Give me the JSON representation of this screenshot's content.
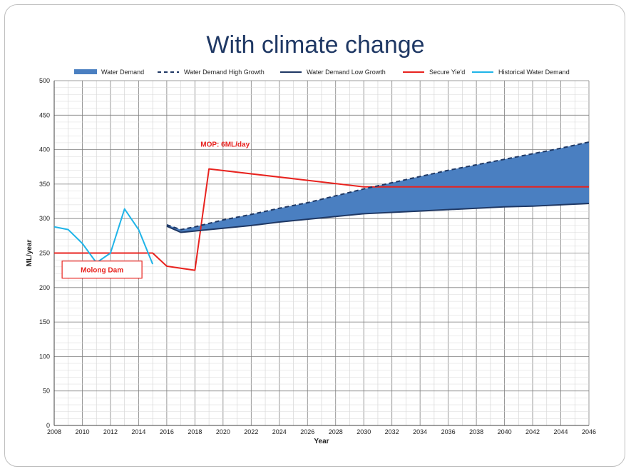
{
  "slide": {
    "title": "With climate change"
  },
  "chart_data": {
    "type": "line",
    "title": "With climate change",
    "xlabel": "Year",
    "ylabel": "ML/year",
    "xlim": [
      2008,
      2046
    ],
    "ylim": [
      0,
      500
    ],
    "x_ticks": [
      2008,
      2010,
      2012,
      2014,
      2016,
      2018,
      2020,
      2022,
      2024,
      2026,
      2028,
      2030,
      2032,
      2034,
      2036,
      2038,
      2040,
      2042,
      2044,
      2046
    ],
    "y_ticks": [
      0,
      50,
      100,
      150,
      200,
      250,
      300,
      350,
      400,
      450,
      500
    ],
    "grid": true,
    "legend_position": "top",
    "series": [
      {
        "name": "Water Demand",
        "kind": "area",
        "color": "#4a7fc1",
        "x": [
          2016,
          2017,
          2018,
          2019,
          2020,
          2022,
          2024,
          2026,
          2028,
          2030,
          2032,
          2034,
          2036,
          2038,
          2040,
          2042,
          2044,
          2046
        ],
        "lower": [
          289,
          280,
          282,
          284,
          286,
          290,
          295,
          299,
          303,
          307,
          309,
          311,
          313,
          315,
          317,
          318,
          320,
          322
        ],
        "upper": [
          291,
          284,
          288,
          293,
          298,
          306,
          315,
          323,
          333,
          343,
          352,
          361,
          370,
          378,
          386,
          394,
          402,
          411
        ]
      },
      {
        "name": "Water Demand High Growth",
        "kind": "dashed",
        "color": "#1f3864",
        "x": [
          2016,
          2017,
          2018,
          2019,
          2020,
          2022,
          2024,
          2026,
          2028,
          2030,
          2032,
          2034,
          2036,
          2038,
          2040,
          2042,
          2044,
          2046
        ],
        "y": [
          291,
          284,
          288,
          293,
          298,
          306,
          315,
          323,
          333,
          343,
          352,
          361,
          370,
          378,
          386,
          394,
          402,
          411
        ]
      },
      {
        "name": "Water Demand Low Growth",
        "kind": "line",
        "color": "#1f3864",
        "x": [
          2016,
          2017,
          2018,
          2019,
          2020,
          2022,
          2024,
          2026,
          2028,
          2030,
          2032,
          2034,
          2036,
          2038,
          2040,
          2042,
          2044,
          2046
        ],
        "y": [
          289,
          280,
          282,
          284,
          286,
          290,
          295,
          299,
          303,
          307,
          309,
          311,
          313,
          315,
          317,
          318,
          320,
          322
        ]
      },
      {
        "name": "Secure Yie'd",
        "kind": "line",
        "color": "#e8231f",
        "x": [
          2008,
          2015,
          2016,
          2017,
          2018,
          2019,
          2030,
          2046
        ],
        "y": [
          250,
          250,
          231,
          228,
          225,
          372,
          346,
          346
        ]
      },
      {
        "name": "Historical Water Demand",
        "kind": "line",
        "color": "#1fb4e8",
        "x": [
          2008,
          2009,
          2010,
          2011,
          2012,
          2013,
          2014,
          2015
        ],
        "y": [
          288,
          284,
          264,
          236,
          250,
          314,
          284,
          234
        ]
      }
    ],
    "annotations": [
      {
        "text": "MOP: 6ML/day",
        "color": "#e8231f",
        "x": 2018.4,
        "y": 404
      },
      {
        "text": "Molong Dam",
        "color": "#e8231f",
        "boxed": true,
        "x": 2011.4,
        "y": 226
      }
    ]
  }
}
